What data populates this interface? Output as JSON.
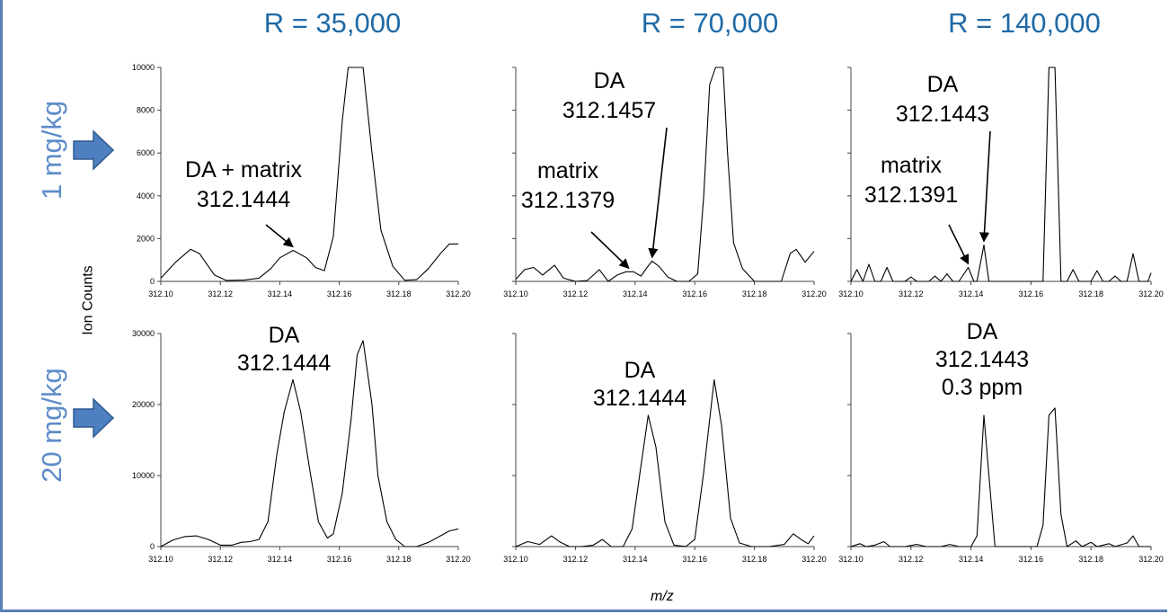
{
  "column_titles": [
    "R = 35,000",
    "R = 70,000",
    "R = 140,000"
  ],
  "row_labels": [
    "1 mg/kg",
    "20 mg/kg"
  ],
  "ylabel": "Ion Counts",
  "xlabel": "m/z",
  "colors": {
    "title": "#1f6aa6",
    "row_label": "#5d8cc9",
    "arrow_fill": "#4e7fc0",
    "arrow_stroke": "#2f5a8f",
    "frame": "#5a7fb5"
  },
  "chart_data": [
    {
      "type": "line",
      "row": 0,
      "col": 0,
      "xlim": [
        312.1,
        312.2
      ],
      "ylim": [
        0,
        10000
      ],
      "x_ticks": [
        "312.10",
        "312.12",
        "312.14",
        "312.16",
        "312.18",
        "312.20"
      ],
      "y_ticks": [
        "0",
        "2000",
        "4000",
        "6000",
        "8000",
        "10000"
      ],
      "points": [
        [
          312.1,
          150
        ],
        [
          312.105,
          900
        ],
        [
          312.11,
          1500
        ],
        [
          312.113,
          1300
        ],
        [
          312.118,
          300
        ],
        [
          312.122,
          40
        ],
        [
          312.128,
          60
        ],
        [
          312.133,
          150
        ],
        [
          312.137,
          600
        ],
        [
          312.14,
          1100
        ],
        [
          312.1445,
          1450
        ],
        [
          312.149,
          1100
        ],
        [
          312.152,
          650
        ],
        [
          312.155,
          500
        ],
        [
          312.158,
          2100
        ],
        [
          312.161,
          7500
        ],
        [
          312.163,
          10500
        ],
        [
          312.166,
          10500
        ],
        [
          312.168,
          10500
        ],
        [
          312.171,
          6000
        ],
        [
          312.174,
          2400
        ],
        [
          312.178,
          700
        ],
        [
          312.182,
          50
        ],
        [
          312.186,
          80
        ],
        [
          312.19,
          600
        ],
        [
          312.194,
          1300
        ],
        [
          312.197,
          1750
        ],
        [
          312.2,
          1750
        ]
      ],
      "annotations": [
        {
          "lines": [
            "DA + matrix",
            "312.1444"
          ],
          "target": [
            312.1444,
            1450
          ],
          "arrow": true
        }
      ]
    },
    {
      "type": "line",
      "row": 0,
      "col": 1,
      "xlim": [
        312.1,
        312.2
      ],
      "ylim": [
        0,
        10000
      ],
      "x_ticks": [
        "312.10",
        "312.12",
        "312.14",
        "312.16",
        "312.18",
        "312.20"
      ],
      "y_ticks": [],
      "points": [
        [
          312.1,
          100
        ],
        [
          312.103,
          550
        ],
        [
          312.106,
          650
        ],
        [
          312.109,
          300
        ],
        [
          312.113,
          750
        ],
        [
          312.116,
          150
        ],
        [
          312.12,
          0
        ],
        [
          312.124,
          40
        ],
        [
          312.128,
          550
        ],
        [
          312.131,
          0
        ],
        [
          312.134,
          300
        ],
        [
          312.137,
          450
        ],
        [
          312.1395,
          450
        ],
        [
          312.142,
          250
        ],
        [
          312.144,
          650
        ],
        [
          312.1457,
          950
        ],
        [
          312.148,
          700
        ],
        [
          312.151,
          200
        ],
        [
          312.154,
          0
        ],
        [
          312.158,
          0
        ],
        [
          312.161,
          350
        ],
        [
          312.163,
          4000
        ],
        [
          312.165,
          9200
        ],
        [
          312.167,
          10500
        ],
        [
          312.1695,
          10500
        ],
        [
          312.171,
          6000
        ],
        [
          312.173,
          1800
        ],
        [
          312.176,
          600
        ],
        [
          312.18,
          0
        ],
        [
          312.185,
          0
        ],
        [
          312.189,
          0
        ],
        [
          312.192,
          1300
        ],
        [
          312.194,
          1500
        ],
        [
          312.197,
          900
        ],
        [
          312.2,
          1400
        ]
      ],
      "annotations": [
        {
          "lines": [
            "DA",
            "312.1457"
          ],
          "target": [
            312.1457,
            950
          ],
          "arrow": true
        },
        {
          "lines": [
            "matrix",
            "312.1379"
          ],
          "target": [
            312.1379,
            450
          ],
          "arrow": true
        }
      ]
    },
    {
      "type": "line",
      "row": 0,
      "col": 2,
      "xlim": [
        312.1,
        312.2
      ],
      "ylim": [
        0,
        10000
      ],
      "x_ticks": [
        "312.10",
        "312.12",
        "312.14",
        "312.16",
        "312.18",
        "312.20"
      ],
      "y_ticks": [],
      "points": [
        [
          312.1,
          0
        ],
        [
          312.102,
          550
        ],
        [
          312.104,
          0
        ],
        [
          312.106,
          800
        ],
        [
          312.108,
          0
        ],
        [
          312.11,
          0
        ],
        [
          312.112,
          650
        ],
        [
          312.114,
          0
        ],
        [
          312.118,
          0
        ],
        [
          312.12,
          200
        ],
        [
          312.122,
          0
        ],
        [
          312.126,
          0
        ],
        [
          312.128,
          250
        ],
        [
          312.13,
          0
        ],
        [
          312.132,
          350
        ],
        [
          312.134,
          0
        ],
        [
          312.136,
          0
        ],
        [
          312.1391,
          650
        ],
        [
          312.141,
          0
        ],
        [
          312.142,
          0
        ],
        [
          312.1443,
          1700
        ],
        [
          312.146,
          0
        ],
        [
          312.15,
          0
        ],
        [
          312.155,
          0
        ],
        [
          312.16,
          0
        ],
        [
          312.164,
          0
        ],
        [
          312.166,
          10500
        ],
        [
          312.168,
          10500
        ],
        [
          312.17,
          0
        ],
        [
          312.172,
          0
        ],
        [
          312.174,
          550
        ],
        [
          312.176,
          0
        ],
        [
          312.18,
          0
        ],
        [
          312.182,
          500
        ],
        [
          312.184,
          0
        ],
        [
          312.186,
          0
        ],
        [
          312.188,
          250
        ],
        [
          312.19,
          0
        ],
        [
          312.192,
          0
        ],
        [
          312.194,
          1300
        ],
        [
          312.196,
          0
        ],
        [
          312.199,
          0
        ],
        [
          312.2,
          400
        ]
      ],
      "annotations": [
        {
          "lines": [
            "DA",
            "312.1443"
          ],
          "target": [
            312.1443,
            1700
          ],
          "arrow": true
        },
        {
          "lines": [
            "matrix",
            "312.1391"
          ],
          "target": [
            312.1391,
            650
          ],
          "arrow": true
        }
      ]
    },
    {
      "type": "line",
      "row": 1,
      "col": 0,
      "xlim": [
        312.1,
        312.2
      ],
      "ylim": [
        0,
        30000
      ],
      "x_ticks": [
        "312.10",
        "312.12",
        "312.14",
        "312.16",
        "312.18",
        "312.20"
      ],
      "y_ticks": [
        "0",
        "10000",
        "20000",
        "30000"
      ],
      "points": [
        [
          312.1,
          0
        ],
        [
          312.104,
          900
        ],
        [
          312.108,
          1400
        ],
        [
          312.112,
          1500
        ],
        [
          312.116,
          1000
        ],
        [
          312.12,
          200
        ],
        [
          312.124,
          200
        ],
        [
          312.127,
          600
        ],
        [
          312.13,
          700
        ],
        [
          312.133,
          1000
        ],
        [
          312.136,
          3500
        ],
        [
          312.139,
          13000
        ],
        [
          312.1415,
          19000
        ],
        [
          312.1444,
          23500
        ],
        [
          312.147,
          19000
        ],
        [
          312.15,
          11000
        ],
        [
          312.153,
          3500
        ],
        [
          312.156,
          1200
        ],
        [
          312.158,
          1800
        ],
        [
          312.161,
          7500
        ],
        [
          312.164,
          18000
        ],
        [
          312.166,
          27000
        ],
        [
          312.168,
          29000
        ],
        [
          312.171,
          20000
        ],
        [
          312.173,
          10000
        ],
        [
          312.176,
          3500
        ],
        [
          312.179,
          1000
        ],
        [
          312.182,
          0
        ],
        [
          312.186,
          0
        ],
        [
          312.19,
          600
        ],
        [
          312.194,
          1500
        ],
        [
          312.197,
          2200
        ],
        [
          312.2,
          2500
        ]
      ],
      "annotations": [
        {
          "lines": [
            "DA",
            "312.1444"
          ],
          "target": [
            312.1444,
            23500
          ],
          "arrow": false
        }
      ]
    },
    {
      "type": "line",
      "row": 1,
      "col": 1,
      "xlim": [
        312.1,
        312.2
      ],
      "ylim": [
        0,
        30000
      ],
      "x_ticks": [
        "312.10",
        "312.12",
        "312.14",
        "312.16",
        "312.18",
        "312.20"
      ],
      "y_ticks": [],
      "points": [
        [
          312.1,
          0
        ],
        [
          312.104,
          700
        ],
        [
          312.108,
          300
        ],
        [
          312.112,
          1500
        ],
        [
          312.115,
          600
        ],
        [
          312.118,
          0
        ],
        [
          312.122,
          0
        ],
        [
          312.126,
          200
        ],
        [
          312.129,
          1000
        ],
        [
          312.132,
          0
        ],
        [
          312.136,
          0
        ],
        [
          312.139,
          2500
        ],
        [
          312.1415,
          10000
        ],
        [
          312.1444,
          18500
        ],
        [
          312.147,
          14000
        ],
        [
          312.15,
          3500
        ],
        [
          312.153,
          200
        ],
        [
          312.157,
          0
        ],
        [
          312.16,
          1000
        ],
        [
          312.163,
          10500
        ],
        [
          312.1665,
          23500
        ],
        [
          312.169,
          17000
        ],
        [
          312.172,
          4000
        ],
        [
          312.175,
          500
        ],
        [
          312.179,
          0
        ],
        [
          312.185,
          0
        ],
        [
          312.19,
          300
        ],
        [
          312.193,
          1800
        ],
        [
          312.196,
          900
        ],
        [
          312.198,
          400
        ],
        [
          312.2,
          1500
        ]
      ],
      "annotations": [
        {
          "lines": [
            "DA",
            "312.1444"
          ],
          "target": [
            312.1444,
            18500
          ],
          "arrow": false
        }
      ]
    },
    {
      "type": "line",
      "row": 1,
      "col": 2,
      "xlim": [
        312.1,
        312.2
      ],
      "ylim": [
        0,
        30000
      ],
      "x_ticks": [
        "312.10",
        "312.12",
        "312.14",
        "312.16",
        "312.18",
        "312.20"
      ],
      "y_ticks": [],
      "points": [
        [
          312.1,
          0
        ],
        [
          312.103,
          400
        ],
        [
          312.105,
          0
        ],
        [
          312.108,
          200
        ],
        [
          312.111,
          700
        ],
        [
          312.113,
          0
        ],
        [
          312.118,
          0
        ],
        [
          312.122,
          300
        ],
        [
          312.125,
          0
        ],
        [
          312.13,
          0
        ],
        [
          312.133,
          300
        ],
        [
          312.136,
          0
        ],
        [
          312.14,
          0
        ],
        [
          312.142,
          1500
        ],
        [
          312.1443,
          18500
        ],
        [
          312.146,
          10000
        ],
        [
          312.148,
          0
        ],
        [
          312.152,
          0
        ],
        [
          312.157,
          0
        ],
        [
          312.162,
          0
        ],
        [
          312.164,
          3000
        ],
        [
          312.166,
          18500
        ],
        [
          312.168,
          19500
        ],
        [
          312.17,
          4500
        ],
        [
          312.172,
          0
        ],
        [
          312.175,
          800
        ],
        [
          312.177,
          0
        ],
        [
          312.18,
          600
        ],
        [
          312.182,
          0
        ],
        [
          312.186,
          400
        ],
        [
          312.188,
          0
        ],
        [
          312.192,
          500
        ],
        [
          312.194,
          1500
        ],
        [
          312.196,
          0
        ],
        [
          312.2,
          0
        ]
      ],
      "annotations": [
        {
          "lines": [
            "DA",
            "312.1443",
            "0.3 ppm"
          ],
          "target": [
            312.1443,
            18500
          ],
          "arrow": false
        }
      ]
    }
  ]
}
